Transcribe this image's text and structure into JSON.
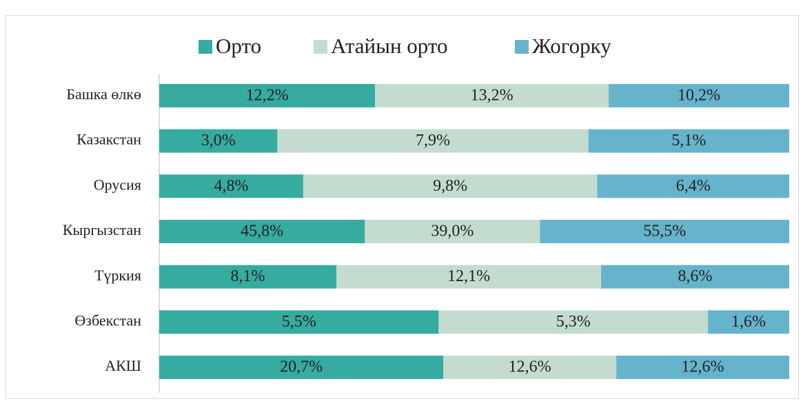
{
  "chart_data": {
    "type": "stacked_bar_100",
    "categories": [
      "Башка өлкө",
      "Казакстан",
      "Орусия",
      "Кыргызстан",
      "Түркия",
      "Өзбекстан",
      "АКШ"
    ],
    "series": [
      {
        "name": "Орто",
        "color": "#36aba0",
        "values": [
          12.2,
          3.0,
          4.8,
          45.8,
          8.1,
          5.5,
          20.7
        ],
        "value_labels": [
          "12,2%",
          "3,0%",
          "4,8%",
          "45,8%",
          "8,1%",
          "5,5%",
          "20,7%"
        ]
      },
      {
        "name": "Атайын орто",
        "color": "#c3dccf",
        "values": [
          13.2,
          7.9,
          9.8,
          39.0,
          12.1,
          5.3,
          12.6
        ],
        "value_labels": [
          "13,2%",
          "7,9%",
          "9,8%",
          "39,0%",
          "12,1%",
          "5,3%",
          "12,6%"
        ]
      },
      {
        "name": "Жогорку",
        "color": "#66b3cc",
        "values": [
          10.2,
          5.1,
          6.4,
          55.5,
          8.6,
          1.6,
          12.6
        ],
        "value_labels": [
          "10,2%",
          "5,1%",
          "6,4%",
          "55,5%",
          "8,6%",
          "1,6%",
          "12,6%"
        ]
      }
    ],
    "legend": "top"
  }
}
